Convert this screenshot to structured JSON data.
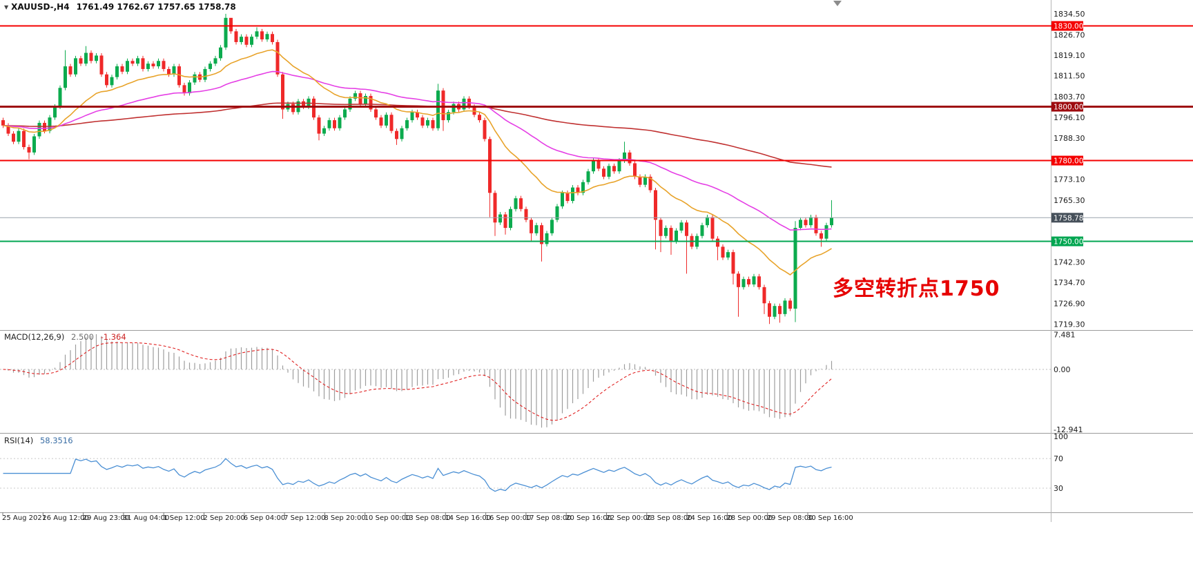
{
  "window": {
    "marker_icon": "▼",
    "symbol_timeframe": "XAUUSD-,H4",
    "ohlc": "1761.49 1762.67 1757.65 1758.78"
  },
  "annotation": {
    "text": "多空转折点1750",
    "color": "#e60000"
  },
  "chart_data": {
    "type": "candlestick",
    "title": "XAUUSD-,H4",
    "symbol": "XAUUSD-",
    "timeframe": "H4",
    "ylim": [
      1719.3,
      1834.5
    ],
    "last_candle": {
      "open": 1761.49,
      "high": 1762.67,
      "low": 1757.65,
      "close": 1758.78
    },
    "colors": {
      "up": "#0cab4e",
      "down": "#ef2929",
      "macd_bar": "#9c9c9c",
      "macd_signal": "#e02020",
      "rsi_line": "#4a8fd4"
    },
    "y_axis_labels": [
      1834.5,
      1826.7,
      1819.1,
      1811.5,
      1803.7,
      1796.1,
      1788.3,
      1773.1,
      1765.3,
      1742.3,
      1734.7,
      1726.9,
      1719.3
    ],
    "levels": [
      {
        "price": 1830.0,
        "label": "1830.00",
        "color": "#f40000",
        "width": 2
      },
      {
        "price": 1800.0,
        "label": "1800.00",
        "color": "#9e0b0f",
        "width": 3
      },
      {
        "price": 1780.0,
        "label": "1780.00",
        "color": "#f40000",
        "width": 2
      },
      {
        "price": 1750.0,
        "label": "1750.00",
        "color": "#00a651",
        "width": 2
      }
    ],
    "current_price": {
      "price": 1758.78,
      "label": "1758.78",
      "line_color": "#9aa4ae",
      "badge_color": "#46505a"
    },
    "x_labels": [
      "25 Aug 2021",
      "26 Aug 12:00",
      "29 Aug 23:00",
      "31 Aug 04:00",
      "1 Sep 12:00",
      "2 Sep 20:00",
      "6 Sep 04:00",
      "7 Sep 12:00",
      "8 Sep 20:00",
      "10 Sep 00:00",
      "13 Sep 08:00",
      "14 Sep 16:00",
      "16 Sep 00:00",
      "17 Sep 08:00",
      "20 Sep 16:00",
      "22 Sep 00:00",
      "23 Sep 08:00",
      "24 Sep 16:00",
      "28 Sep 00:00",
      "29 Sep 08:00",
      "30 Sep 16:00"
    ],
    "closes": [
      1793,
      1790,
      1787,
      1791,
      1785,
      1783,
      1789,
      1794,
      1791,
      1796,
      1800,
      1807,
      1815,
      1812,
      1818,
      1816,
      1820,
      1817,
      1819,
      1812,
      1808,
      1811,
      1815,
      1813,
      1817,
      1816,
      1818,
      1814,
      1816,
      1815,
      1817,
      1814,
      1812,
      1815,
      1808,
      1805,
      1809,
      1812,
      1810,
      1814,
      1816,
      1818,
      1822,
      1833,
      1828,
      1824,
      1826,
      1823,
      1826,
      1828,
      1825,
      1827,
      1824,
      1812,
      1799,
      1801,
      1798,
      1802,
      1800,
      1803,
      1796,
      1790,
      1792,
      1795,
      1792,
      1796,
      1799,
      1803,
      1805,
      1801,
      1804,
      1799,
      1796,
      1793,
      1797,
      1791,
      1788,
      1792,
      1795,
      1798,
      1796,
      1793,
      1795,
      1792,
      1806,
      1795,
      1798,
      1801,
      1799,
      1803,
      1800,
      1797,
      1795,
      1788,
      1768,
      1757,
      1760,
      1755,
      1762,
      1766,
      1762,
      1758,
      1753,
      1756,
      1749,
      1753,
      1758,
      1763,
      1768,
      1765,
      1770,
      1768,
      1772,
      1776,
      1780,
      1777,
      1774,
      1778,
      1776,
      1780,
      1783,
      1779,
      1774,
      1771,
      1774,
      1769,
      1758,
      1752,
      1755,
      1750,
      1754,
      1757,
      1752,
      1748,
      1752,
      1756,
      1759,
      1751,
      1748,
      1744,
      1746,
      1738,
      1733,
      1736,
      1734,
      1737,
      1733,
      1727,
      1722,
      1726,
      1723,
      1728,
      1725,
      1755,
      1758,
      1756,
      1759,
      1753,
      1751,
      1756,
      1758.78
    ],
    "high_overrides": {
      "12": 1821,
      "16": 1822.5,
      "43": 1834.5,
      "44": 1832,
      "49": 1829.5,
      "84": 1808.5,
      "120": 1787,
      "153": 1757.5,
      "160": 1765.3
    },
    "low_overrides": {
      "5": 1780.5,
      "54": 1795.5,
      "61": 1787.5,
      "76": 1785.8,
      "85": 1791,
      "94": 1759,
      "95": 1752,
      "97": 1752.5,
      "102": 1750,
      "104": 1742.5,
      "126": 1747,
      "127": 1746,
      "129": 1745,
      "132": 1738,
      "138": 1743,
      "141": 1734,
      "142": 1722,
      "147": 1723,
      "148": 1719.3,
      "150": 1719.8,
      "153": 1720,
      "158": 1748
    },
    "moving_averages": [
      {
        "name": "slow",
        "period": 200,
        "color": "#c03030"
      },
      {
        "name": "mid",
        "period": 55,
        "color": "#e53fe5"
      },
      {
        "name": "fast",
        "period": 21,
        "color": "#e8a32a"
      }
    ],
    "indicators": {
      "macd": {
        "label": "MACD(12,26,9)",
        "value_main": "2.500",
        "value_signal": "-1.364",
        "axis_labels": [
          "7.481",
          "0.00",
          "-12.941"
        ],
        "axis_values": [
          7.481,
          0,
          -12.941
        ]
      },
      "rsi": {
        "label": "RSI(14)",
        "value": "58.3516",
        "axis_labels": [
          "100",
          "70",
          "30"
        ],
        "axis_values": [
          100,
          70,
          30
        ],
        "guide_levels": [
          70,
          30
        ]
      }
    }
  }
}
